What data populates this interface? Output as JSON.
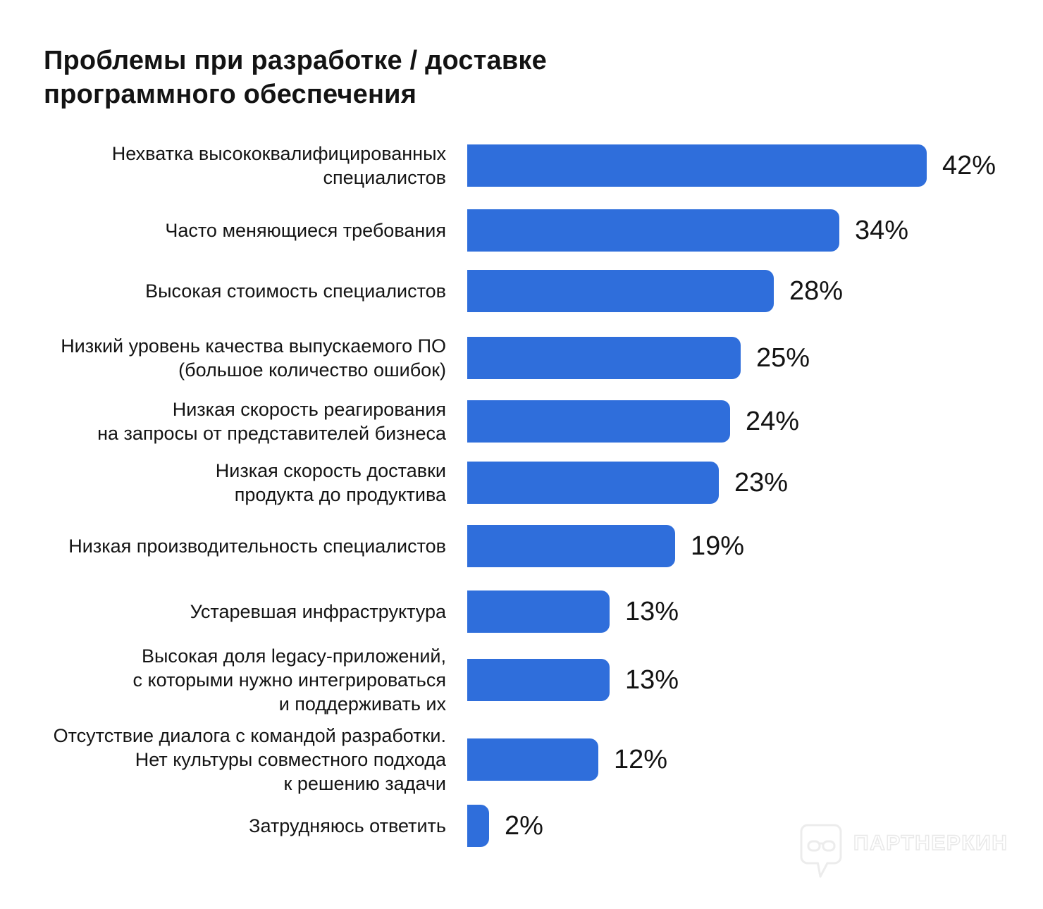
{
  "title": "Проблемы при разработке / доставке\nпрограммного обеспечения",
  "chart_data": {
    "type": "bar",
    "orientation": "horizontal",
    "title": "Проблемы при разработке / доставке программного обеспечения",
    "unit": "%",
    "bar_color": "#2F6EDB",
    "text_color": "#131313",
    "background_color": "#FFFFFF",
    "xlim": [
      0,
      45
    ],
    "grid": false,
    "legend": false,
    "categories": [
      "Нехватка высококвалифицированных\nспециалистов",
      "Часто меняющиеся требования",
      "Высокая стоимость специалистов",
      "Низкий уровень качества выпускаемого ПО\n(большое количество ошибок)",
      "Низкая скорость реагирования\nна запросы от представителей бизнеса",
      "Низкая скорость доставки\nпродукта до продуктива",
      "Низкая производительность специалистов",
      "Устаревшая инфраструктура",
      "Высокая доля legacy-приложений,\nс которыми нужно интегрироваться\nи поддерживать их",
      "Отсутствие диалога с командой разработки.\nНет культуры совместного подхода\nк решению задачи",
      "Затрудняюсь ответить"
    ],
    "values": [
      42,
      34,
      28,
      25,
      24,
      23,
      19,
      13,
      13,
      12,
      2
    ],
    "value_labels": [
      "42%",
      "34%",
      "28%",
      "25%",
      "24%",
      "23%",
      "19%",
      "13%",
      "13%",
      "12%",
      "2%"
    ]
  },
  "watermark": {
    "text": "ПАРТНЕРКИН"
  }
}
